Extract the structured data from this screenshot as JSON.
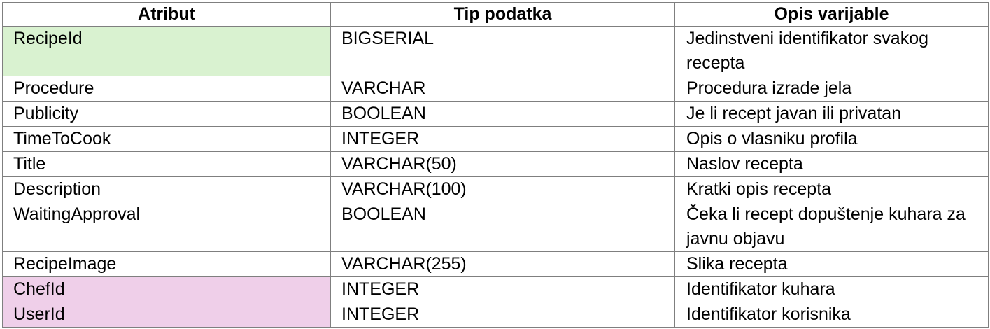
{
  "table": {
    "headers": [
      "Atribut",
      "Tip podatka",
      "Opis varijable"
    ],
    "colors": {
      "primary_key_bg": "#d9f2d0",
      "foreign_key_bg": "#efcfe9"
    },
    "rows": [
      {
        "attribute": "RecipeId",
        "type": "BIGSERIAL",
        "description": "Jedinstveni identifikator svakog recepta",
        "key": "primary"
      },
      {
        "attribute": "Procedure",
        "type": "VARCHAR",
        "description": "Procedura izrade jela",
        "key": ""
      },
      {
        "attribute": "Publicity",
        "type": "BOOLEAN",
        "description": "Je li recept javan ili privatan",
        "key": ""
      },
      {
        "attribute": "TimeToCook",
        "type": "INTEGER",
        "description": "Opis o vlasniku profila",
        "key": ""
      },
      {
        "attribute": "Title",
        "type": "VARCHAR(50)",
        "description": "Naslov recepta",
        "key": ""
      },
      {
        "attribute": "Description",
        "type": "VARCHAR(100)",
        "description": "Kratki opis recepta",
        "key": ""
      },
      {
        "attribute": "WaitingApproval",
        "type": "BOOLEAN",
        "description": "Čeka li recept dopuštenje kuhara za javnu objavu",
        "key": ""
      },
      {
        "attribute": "RecipeImage",
        "type": "VARCHAR(255)",
        "description": "Slika recepta",
        "key": ""
      },
      {
        "attribute": "ChefId",
        "type": "INTEGER",
        "description": "Identifikator kuhara",
        "key": "foreign"
      },
      {
        "attribute": "UserId",
        "type": "INTEGER",
        "description": "Identifikator korisnika",
        "key": "foreign"
      }
    ]
  }
}
